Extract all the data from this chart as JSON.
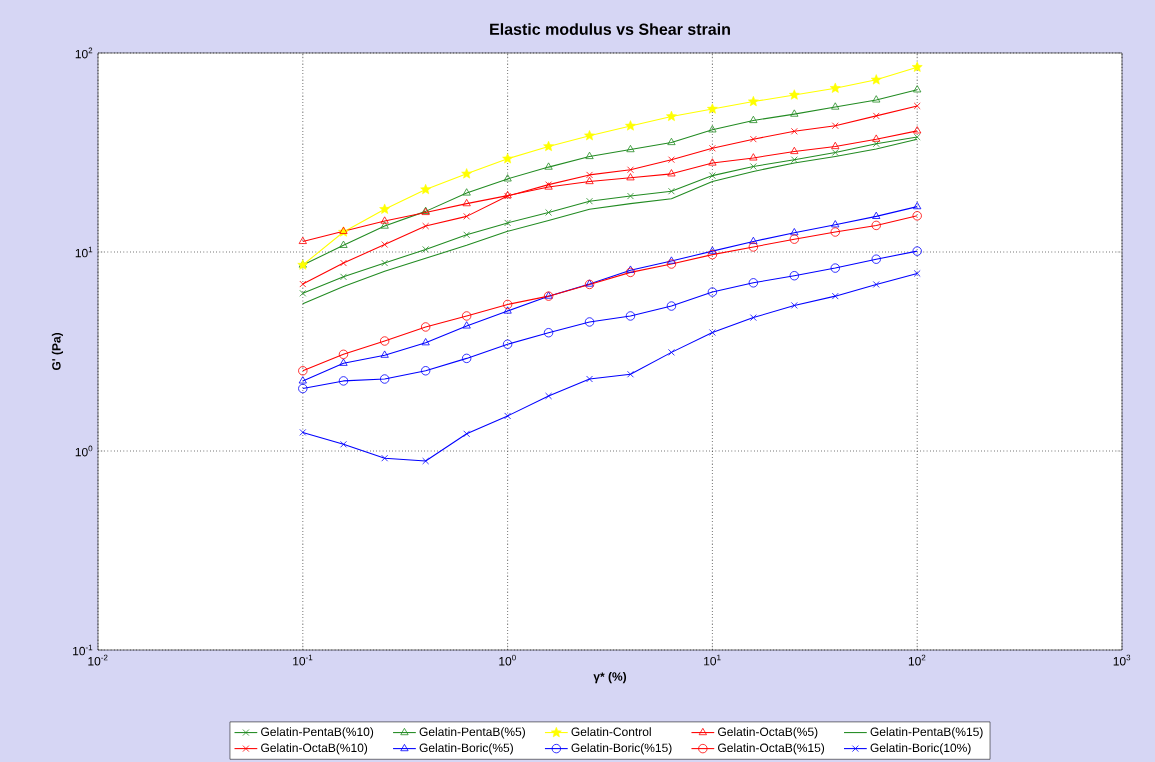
{
  "chart_data": {
    "type": "line",
    "title": "Elastic modulus vs Shear strain",
    "xlabel": "γ* (%)",
    "ylabel": "G' (Pa)",
    "log": "xy",
    "grid": true,
    "legend": "bottom",
    "line_style": "solid",
    "xlim": [
      0.01,
      1000
    ],
    "ylim": [
      0.1,
      100
    ],
    "xticks": [
      {
        "value": 0.01,
        "label": "10$^{-2}$"
      },
      {
        "value": 0.1,
        "label": "10$^{-1}$"
      },
      {
        "value": 1,
        "label": "10$^{0}$"
      },
      {
        "value": 10,
        "label": "10$^{1}$"
      },
      {
        "value": 100,
        "label": "10$^{2}$"
      },
      {
        "value": 1000,
        "label": "10$^{3}$"
      }
    ],
    "yticks": [
      {
        "value": 0.1,
        "label": "10$^{-1}$"
      },
      {
        "value": 1,
        "label": "10$^{0}$"
      },
      {
        "value": 10,
        "label": "10$^{1}$"
      },
      {
        "value": 100,
        "label": "10$^{2}$"
      }
    ],
    "x": [
      0.1,
      0.158,
      0.251,
      0.398,
      0.631,
      1,
      1.585,
      2.512,
      3.981,
      6.31,
      10,
      15.85,
      25.12,
      39.81,
      63.1,
      100
    ],
    "series": [
      {
        "name": "Gelatin-PentaB(%10)",
        "color": "#228b22",
        "marker": "cross",
        "values": [
          6.2,
          7.5,
          8.8,
          10.3,
          12.2,
          14.0,
          15.8,
          18.0,
          19.1,
          20.2,
          24.2,
          26.9,
          29.1,
          31.6,
          35.0,
          37.8
        ]
      },
      {
        "name": "Gelatin-PentaB(%5)",
        "color": "#228b22",
        "marker": "triangle",
        "values": [
          8.6,
          10.8,
          13.5,
          16.0,
          19.8,
          23.3,
          26.7,
          30.2,
          32.7,
          35.5,
          41.1,
          45.8,
          49.3,
          53.5,
          58.1,
          65.3
        ]
      },
      {
        "name": "Gelatin-Control",
        "color": "#ffff00",
        "marker": "star",
        "values": [
          8.6,
          12.6,
          16.4,
          20.6,
          24.7,
          29.4,
          33.9,
          38.4,
          43.0,
          48.0,
          52.3,
          57.0,
          61.5,
          66.5,
          73.3,
          84.8
        ]
      },
      {
        "name": "Gelatin-OctaB(%5)",
        "color": "#ff0000",
        "marker": "triangle",
        "values": [
          11.3,
          12.7,
          14.3,
          15.8,
          17.5,
          19.2,
          21.2,
          22.6,
          23.6,
          24.7,
          28.0,
          29.7,
          32.0,
          33.9,
          36.9,
          40.6
        ]
      },
      {
        "name": "Gelatin-PentaB(%15)",
        "color": "#228b22",
        "marker": "none",
        "values": [
          5.5,
          6.7,
          8.0,
          9.3,
          10.8,
          12.7,
          14.4,
          16.4,
          17.5,
          18.5,
          22.6,
          25.4,
          28.0,
          30.2,
          32.9,
          36.9
        ]
      },
      {
        "name": "Gelatin-OctaB(%10)",
        "color": "#ff0000",
        "marker": "cross",
        "values": [
          6.9,
          8.8,
          10.9,
          13.5,
          15.1,
          19.1,
          21.8,
          24.4,
          25.9,
          29.1,
          33.2,
          36.9,
          40.4,
          43.1,
          48.3,
          54.2
        ]
      },
      {
        "name": "Gelatin-Boric(%5)",
        "color": "#0000ff",
        "marker": "triangle",
        "values": [
          2.25,
          2.76,
          3.03,
          3.5,
          4.25,
          5.05,
          6.0,
          6.9,
          8.1,
          9.0,
          10.1,
          11.3,
          12.5,
          13.7,
          15.1,
          16.9
        ]
      },
      {
        "name": "Gelatin-Boric(%15)",
        "color": "#0000ff",
        "marker": "circle",
        "values": [
          2.06,
          2.25,
          2.3,
          2.53,
          2.92,
          3.44,
          3.93,
          4.45,
          4.77,
          5.35,
          6.29,
          7.0,
          7.6,
          8.3,
          9.2,
          10.1
        ]
      },
      {
        "name": "Gelatin-OctaB(%15)",
        "color": "#ff0000",
        "marker": "circle",
        "values": [
          2.53,
          3.06,
          3.57,
          4.2,
          4.77,
          5.45,
          6.0,
          6.87,
          7.9,
          8.7,
          9.7,
          10.6,
          11.6,
          12.6,
          13.6,
          15.2
        ]
      },
      {
        "name": "Gelatin-Boric(10%)",
        "color": "#0000ff",
        "marker": "cross",
        "values": [
          1.24,
          1.08,
          0.92,
          0.89,
          1.22,
          1.5,
          1.89,
          2.3,
          2.43,
          3.13,
          3.94,
          4.68,
          5.39,
          6.0,
          6.87,
          7.8
        ]
      }
    ]
  }
}
